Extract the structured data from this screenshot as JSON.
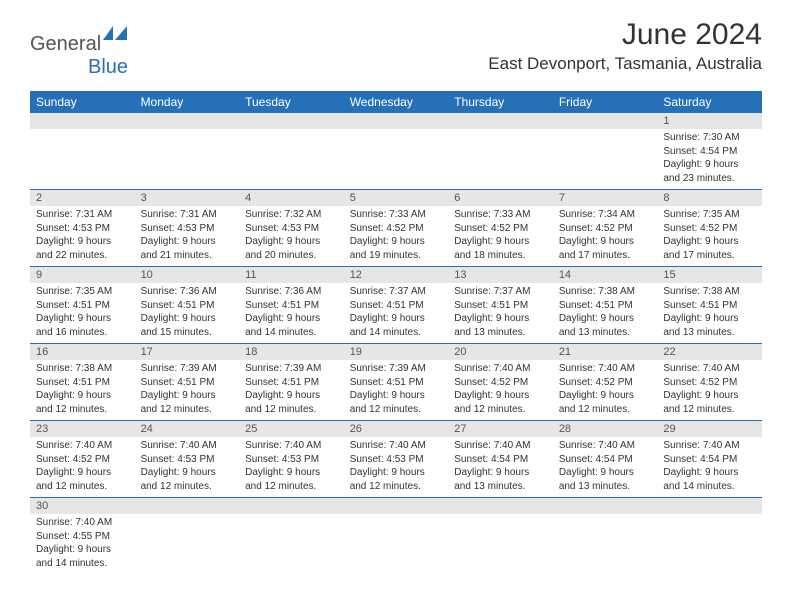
{
  "logo": {
    "gray": "General",
    "blue": "Blue"
  },
  "title": "June 2024",
  "location": "East Devonport, Tasmania, Australia",
  "colors": {
    "header_bg": "#2670b8",
    "daynum_bg": "#e6e6e6",
    "text": "#333333"
  },
  "day_headers": [
    "Sunday",
    "Monday",
    "Tuesday",
    "Wednesday",
    "Thursday",
    "Friday",
    "Saturday"
  ],
  "layout": {
    "first_day_column": 6,
    "total_days": 30
  },
  "days": {
    "1": {
      "sunrise": "7:30 AM",
      "sunset": "4:54 PM",
      "daylight": "9 hours and 23 minutes."
    },
    "2": {
      "sunrise": "7:31 AM",
      "sunset": "4:53 PM",
      "daylight": "9 hours and 22 minutes."
    },
    "3": {
      "sunrise": "7:31 AM",
      "sunset": "4:53 PM",
      "daylight": "9 hours and 21 minutes."
    },
    "4": {
      "sunrise": "7:32 AM",
      "sunset": "4:53 PM",
      "daylight": "9 hours and 20 minutes."
    },
    "5": {
      "sunrise": "7:33 AM",
      "sunset": "4:52 PM",
      "daylight": "9 hours and 19 minutes."
    },
    "6": {
      "sunrise": "7:33 AM",
      "sunset": "4:52 PM",
      "daylight": "9 hours and 18 minutes."
    },
    "7": {
      "sunrise": "7:34 AM",
      "sunset": "4:52 PM",
      "daylight": "9 hours and 17 minutes."
    },
    "8": {
      "sunrise": "7:35 AM",
      "sunset": "4:52 PM",
      "daylight": "9 hours and 17 minutes."
    },
    "9": {
      "sunrise": "7:35 AM",
      "sunset": "4:51 PM",
      "daylight": "9 hours and 16 minutes."
    },
    "10": {
      "sunrise": "7:36 AM",
      "sunset": "4:51 PM",
      "daylight": "9 hours and 15 minutes."
    },
    "11": {
      "sunrise": "7:36 AM",
      "sunset": "4:51 PM",
      "daylight": "9 hours and 14 minutes."
    },
    "12": {
      "sunrise": "7:37 AM",
      "sunset": "4:51 PM",
      "daylight": "9 hours and 14 minutes."
    },
    "13": {
      "sunrise": "7:37 AM",
      "sunset": "4:51 PM",
      "daylight": "9 hours and 13 minutes."
    },
    "14": {
      "sunrise": "7:38 AM",
      "sunset": "4:51 PM",
      "daylight": "9 hours and 13 minutes."
    },
    "15": {
      "sunrise": "7:38 AM",
      "sunset": "4:51 PM",
      "daylight": "9 hours and 13 minutes."
    },
    "16": {
      "sunrise": "7:38 AM",
      "sunset": "4:51 PM",
      "daylight": "9 hours and 12 minutes."
    },
    "17": {
      "sunrise": "7:39 AM",
      "sunset": "4:51 PM",
      "daylight": "9 hours and 12 minutes."
    },
    "18": {
      "sunrise": "7:39 AM",
      "sunset": "4:51 PM",
      "daylight": "9 hours and 12 minutes."
    },
    "19": {
      "sunrise": "7:39 AM",
      "sunset": "4:51 PM",
      "daylight": "9 hours and 12 minutes."
    },
    "20": {
      "sunrise": "7:40 AM",
      "sunset": "4:52 PM",
      "daylight": "9 hours and 12 minutes."
    },
    "21": {
      "sunrise": "7:40 AM",
      "sunset": "4:52 PM",
      "daylight": "9 hours and 12 minutes."
    },
    "22": {
      "sunrise": "7:40 AM",
      "sunset": "4:52 PM",
      "daylight": "9 hours and 12 minutes."
    },
    "23": {
      "sunrise": "7:40 AM",
      "sunset": "4:52 PM",
      "daylight": "9 hours and 12 minutes."
    },
    "24": {
      "sunrise": "7:40 AM",
      "sunset": "4:53 PM",
      "daylight": "9 hours and 12 minutes."
    },
    "25": {
      "sunrise": "7:40 AM",
      "sunset": "4:53 PM",
      "daylight": "9 hours and 12 minutes."
    },
    "26": {
      "sunrise": "7:40 AM",
      "sunset": "4:53 PM",
      "daylight": "9 hours and 12 minutes."
    },
    "27": {
      "sunrise": "7:40 AM",
      "sunset": "4:54 PM",
      "daylight": "9 hours and 13 minutes."
    },
    "28": {
      "sunrise": "7:40 AM",
      "sunset": "4:54 PM",
      "daylight": "9 hours and 13 minutes."
    },
    "29": {
      "sunrise": "7:40 AM",
      "sunset": "4:54 PM",
      "daylight": "9 hours and 14 minutes."
    },
    "30": {
      "sunrise": "7:40 AM",
      "sunset": "4:55 PM",
      "daylight": "9 hours and 14 minutes."
    }
  },
  "labels": {
    "sunrise": "Sunrise:",
    "sunset": "Sunset:",
    "daylight": "Daylight:"
  }
}
